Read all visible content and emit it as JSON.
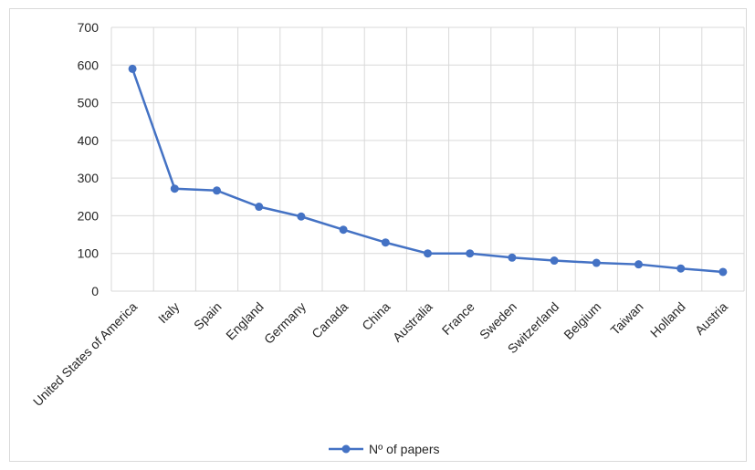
{
  "chart_data": {
    "type": "line",
    "categories": [
      "United States of America",
      "Italy",
      "Spain",
      "England",
      "Germany",
      "Canada",
      "China",
      "Australia",
      "France",
      "Sweden",
      "Switzerland",
      "Belgium",
      "Taiwan",
      "Holland",
      "Austria"
    ],
    "series": [
      {
        "name": "Nº of papers",
        "values": [
          590,
          272,
          267,
          224,
          198,
          163,
          129,
          100,
          100,
          89,
          81,
          75,
          71,
          60,
          51
        ],
        "color": "#4472C4"
      }
    ],
    "title": "",
    "xlabel": "",
    "ylabel": "",
    "ylim": [
      0,
      700
    ],
    "yticks": [
      0,
      100,
      200,
      300,
      400,
      500,
      600,
      700
    ],
    "grid": true,
    "legend": "bottom"
  }
}
